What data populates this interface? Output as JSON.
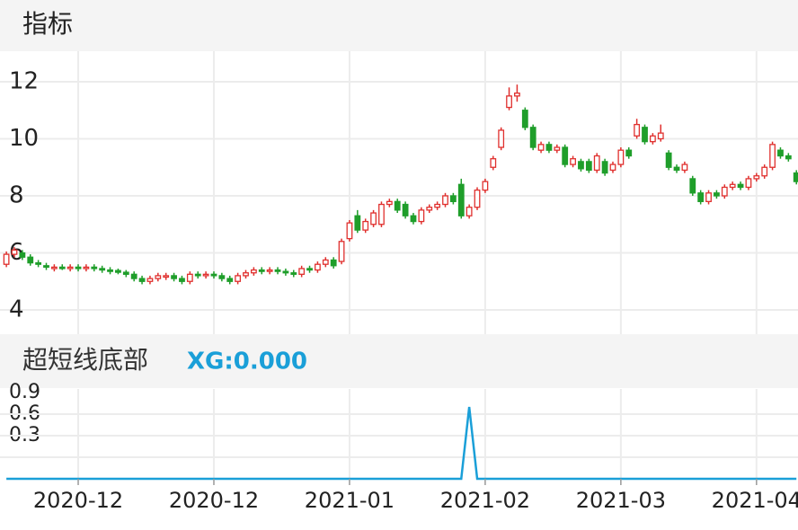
{
  "chart_data": [
    {
      "type": "candlestick",
      "title": "指标",
      "open": [
        5.6,
        5.95,
        6.0,
        5.85,
        5.65,
        5.55,
        5.45,
        5.5,
        5.45,
        5.5,
        5.45,
        5.5,
        5.45,
        5.4,
        5.38,
        5.32,
        5.25,
        5.1,
        5.0,
        5.1,
        5.15,
        5.2,
        5.1,
        5.0,
        5.25,
        5.2,
        5.25,
        5.2,
        5.1,
        5.0,
        5.2,
        5.3,
        5.4,
        5.35,
        5.4,
        5.35,
        5.3,
        5.25,
        5.45,
        5.4,
        5.6,
        5.75,
        5.7,
        6.5,
        7.3,
        6.8,
        7.0,
        7.0,
        7.7,
        7.8,
        7.7,
        7.3,
        7.1,
        7.5,
        7.6,
        7.7,
        8.0,
        8.4,
        7.3,
        7.6,
        8.2,
        9.0,
        9.7,
        11.1,
        11.5,
        11.0,
        10.4,
        9.6,
        9.8,
        9.6,
        9.7,
        9.1,
        9.2,
        9.2,
        8.9,
        9.2,
        8.9,
        9.1,
        9.6,
        10.1,
        10.4,
        9.9,
        10.0,
        9.5,
        9.0,
        8.9,
        8.6,
        8.1,
        7.8,
        8.1,
        8.0,
        8.3,
        8.4,
        8.3,
        8.6,
        8.7,
        9.0,
        9.6,
        9.4,
        8.8
      ],
      "high": [
        6.05,
        6.2,
        6.1,
        5.95,
        5.75,
        5.65,
        5.6,
        5.6,
        5.6,
        5.6,
        5.6,
        5.6,
        5.55,
        5.5,
        5.45,
        5.4,
        5.35,
        5.2,
        5.2,
        5.3,
        5.3,
        5.3,
        5.2,
        5.35,
        5.35,
        5.35,
        5.35,
        5.3,
        5.2,
        5.3,
        5.4,
        5.5,
        5.5,
        5.5,
        5.5,
        5.45,
        5.4,
        5.55,
        5.55,
        5.7,
        5.85,
        5.85,
        6.5,
        7.15,
        7.5,
        7.2,
        7.5,
        7.8,
        7.9,
        7.9,
        7.8,
        7.4,
        7.6,
        7.7,
        7.8,
        8.1,
        8.1,
        8.6,
        7.7,
        8.3,
        8.6,
        9.4,
        10.4,
        11.8,
        11.9,
        11.1,
        10.5,
        9.9,
        9.9,
        9.8,
        9.8,
        9.4,
        9.3,
        9.3,
        9.5,
        9.3,
        9.2,
        9.7,
        9.7,
        10.7,
        10.5,
        10.2,
        10.5,
        9.6,
        9.1,
        9.2,
        8.7,
        8.2,
        8.2,
        8.2,
        8.4,
        8.5,
        8.5,
        8.7,
        8.8,
        9.1,
        9.9,
        9.7,
        9.5,
        8.9
      ],
      "low": [
        5.5,
        5.85,
        5.75,
        5.55,
        5.5,
        5.4,
        5.35,
        5.4,
        5.35,
        5.35,
        5.35,
        5.35,
        5.3,
        5.25,
        5.25,
        5.15,
        5.0,
        4.9,
        4.9,
        5.0,
        5.05,
        5.0,
        4.9,
        4.9,
        5.1,
        5.1,
        5.1,
        5.0,
        4.9,
        4.9,
        5.1,
        5.2,
        5.25,
        5.25,
        5.25,
        5.2,
        5.15,
        5.15,
        5.3,
        5.3,
        5.5,
        5.45,
        5.6,
        6.4,
        6.7,
        6.7,
        6.9,
        6.9,
        7.6,
        7.4,
        7.2,
        7.0,
        7.0,
        7.4,
        7.5,
        7.6,
        7.7,
        7.2,
        7.2,
        7.5,
        8.1,
        8.9,
        9.6,
        11.0,
        11.3,
        10.3,
        9.6,
        9.5,
        9.5,
        9.5,
        9.0,
        9.0,
        8.85,
        8.8,
        8.8,
        8.7,
        8.8,
        9.0,
        9.3,
        10.0,
        9.8,
        9.8,
        9.9,
        8.9,
        8.8,
        8.8,
        8.0,
        7.7,
        7.7,
        7.9,
        7.9,
        8.2,
        8.2,
        8.2,
        8.5,
        8.6,
        8.9,
        9.3,
        9.2,
        8.4
      ],
      "close": [
        5.95,
        6.1,
        5.85,
        5.65,
        5.6,
        5.5,
        5.5,
        5.45,
        5.5,
        5.45,
        5.5,
        5.45,
        5.4,
        5.35,
        5.32,
        5.25,
        5.1,
        5.0,
        5.1,
        5.2,
        5.2,
        5.1,
        5.0,
        5.25,
        5.2,
        5.25,
        5.2,
        5.1,
        5.0,
        5.2,
        5.3,
        5.4,
        5.35,
        5.4,
        5.35,
        5.3,
        5.25,
        5.45,
        5.4,
        5.6,
        5.75,
        5.55,
        6.4,
        7.05,
        6.8,
        7.1,
        7.4,
        7.7,
        7.8,
        7.5,
        7.3,
        7.1,
        7.5,
        7.6,
        7.7,
        8.0,
        7.8,
        7.3,
        7.6,
        8.2,
        8.5,
        9.3,
        10.3,
        11.5,
        11.6,
        10.4,
        9.7,
        9.8,
        9.6,
        9.7,
        9.1,
        9.3,
        8.95,
        8.9,
        9.4,
        8.8,
        9.1,
        9.6,
        9.4,
        10.5,
        9.9,
        10.1,
        10.2,
        9.0,
        8.9,
        9.1,
        8.1,
        7.8,
        8.1,
        8.0,
        8.3,
        8.4,
        8.3,
        8.6,
        8.7,
        9.0,
        9.8,
        9.4,
        9.3,
        8.5
      ],
      "up_color": "#e0302e",
      "down_color": "#1f9e2a",
      "xlim": [
        -0.8,
        99.2
      ],
      "xticks": [
        {
          "value": 9,
          "label": "2020-12"
        },
        {
          "value": 26,
          "label": "2020-12"
        },
        {
          "value": 43,
          "label": "2021-01"
        },
        {
          "value": 60,
          "label": "2021-02"
        },
        {
          "value": 77,
          "label": "2021-03"
        },
        {
          "value": 94,
          "label": "2021-04"
        }
      ],
      "ylim": [
        3.15,
        13.07
      ],
      "yticks": [
        4,
        6,
        8,
        10,
        12
      ],
      "grid": true
    },
    {
      "type": "line",
      "title": "超短线底部",
      "annotation": "XG:0.000",
      "series": [
        {
          "name": "XG",
          "color": "#1a9fd8",
          "values": [
            0,
            0,
            0,
            0,
            0,
            0,
            0,
            0,
            0,
            0,
            0,
            0,
            0,
            0,
            0,
            0,
            0,
            0,
            0,
            0,
            0,
            0,
            0,
            0,
            0,
            0,
            0,
            0,
            0,
            0,
            0,
            0,
            0,
            0,
            0,
            0,
            0,
            0,
            0,
            0,
            0,
            0,
            0,
            0,
            0,
            0,
            0,
            0,
            0,
            0,
            0,
            0,
            0,
            0,
            0,
            0,
            0,
            0,
            1,
            0,
            0,
            0,
            0,
            0,
            0,
            0,
            0,
            0,
            0,
            0,
            0,
            0,
            0,
            0,
            0,
            0,
            0,
            0,
            0,
            0,
            0,
            0,
            0,
            0,
            0,
            0,
            0,
            0,
            0,
            0,
            0,
            0,
            0,
            0,
            0,
            0,
            0,
            0,
            0,
            0
          ]
        }
      ],
      "xlim": [
        -0.8,
        99.2
      ],
      "ylim": [
        0,
        1.25
      ],
      "yticks": [
        0.3,
        0.6,
        0.9
      ],
      "grid": true
    }
  ]
}
